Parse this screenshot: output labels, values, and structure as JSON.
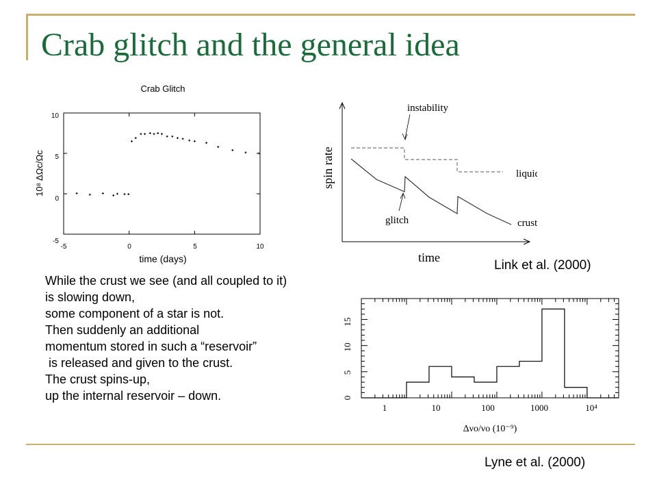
{
  "slide": {
    "title": "Crab glitch and the general idea",
    "colors": {
      "title": "#1a6b3a",
      "rule": "#c9b06a"
    }
  },
  "figures": {
    "crab": {
      "title": "Crab Glitch",
      "xlabel": "time (days)",
      "ylabel": "10⁸ ΔΩc/Ωc",
      "xticks": [
        "-5",
        "0",
        "5",
        "10"
      ],
      "yticks": [
        "10",
        "5",
        "0",
        "-5"
      ]
    },
    "model": {
      "xlabel": "time",
      "ylabel": "spin rate",
      "labels": {
        "instability": "instability",
        "liquid": "liquid",
        "glitch": "glitch",
        "crust": "crust"
      }
    },
    "histogram": {
      "xlabel": "Δνo/νo (10⁻⁹)",
      "xticks": [
        "1",
        "10",
        "100",
        "1000",
        "10⁴"
      ],
      "yticks": [
        "0",
        "5",
        "10",
        "15"
      ]
    }
  },
  "chart_data": [
    {
      "type": "scatter",
      "title": "Crab Glitch",
      "xlabel": "time (days)",
      "ylabel": "10⁸ ΔΩc/Ωc",
      "xlim": [
        -5,
        10
      ],
      "ylim": [
        -5,
        10
      ],
      "points": [
        {
          "x": -4.0,
          "y": 0.05
        },
        {
          "x": -3.0,
          "y": -0.1
        },
        {
          "x": -2.0,
          "y": 0.05
        },
        {
          "x": -1.2,
          "y": -0.2
        },
        {
          "x": -0.9,
          "y": 0.0
        },
        {
          "x": -0.35,
          "y": -0.05
        },
        {
          "x": -0.05,
          "y": -0.05
        },
        {
          "x": 0.2,
          "y": 6.5
        },
        {
          "x": 0.5,
          "y": 6.9
        },
        {
          "x": 0.9,
          "y": 7.4
        },
        {
          "x": 1.2,
          "y": 7.4
        },
        {
          "x": 1.6,
          "y": 7.5
        },
        {
          "x": 1.9,
          "y": 7.4
        },
        {
          "x": 2.2,
          "y": 7.5
        },
        {
          "x": 2.5,
          "y": 7.4
        },
        {
          "x": 2.9,
          "y": 7.1
        },
        {
          "x": 3.3,
          "y": 7.1
        },
        {
          "x": 3.7,
          "y": 6.9
        },
        {
          "x": 4.1,
          "y": 6.8
        },
        {
          "x": 4.6,
          "y": 6.6
        },
        {
          "x": 5.0,
          "y": 6.5
        },
        {
          "x": 5.9,
          "y": 6.3
        },
        {
          "x": 6.8,
          "y": 5.8
        },
        {
          "x": 7.9,
          "y": 5.4
        },
        {
          "x": 8.9,
          "y": 5.1
        },
        {
          "x": 9.9,
          "y": 5.0
        }
      ]
    },
    {
      "type": "bar",
      "xlabel": "Δνo/νo (10⁻⁹)",
      "x_scale": "log",
      "xlim": [
        0.1,
        50000
      ],
      "ylim": [
        0,
        19
      ],
      "bins": [
        {
          "from": 0.1,
          "to": 1,
          "value": 0
        },
        {
          "from": 1,
          "to": 3.16,
          "value": 3
        },
        {
          "from": 3.16,
          "to": 10,
          "value": 6
        },
        {
          "from": 10,
          "to": 31.6,
          "value": 4
        },
        {
          "from": 31.6,
          "to": 100,
          "value": 3
        },
        {
          "from": 100,
          "to": 316,
          "value": 6
        },
        {
          "from": 316,
          "to": 1000,
          "value": 7
        },
        {
          "from": 1000,
          "to": 3162,
          "value": 17
        },
        {
          "from": 3162,
          "to": 10000,
          "value": 2
        },
        {
          "from": 10000,
          "to": 50000,
          "value": 0
        }
      ]
    }
  ],
  "text": {
    "lines": [
      "While the crust we see (and all coupled to it)",
      "is slowing down,",
      "some component of a star is not.",
      "Then suddenly an additional",
      "momentum stored in such a “reservoir”",
      " is released and given to the crust.",
      "The crust spins-up,",
      "up the internal reservoir – down."
    ],
    "citation_link": "Link et al. (2000)",
    "citation_lyne": "Lyne et al. (2000)"
  }
}
